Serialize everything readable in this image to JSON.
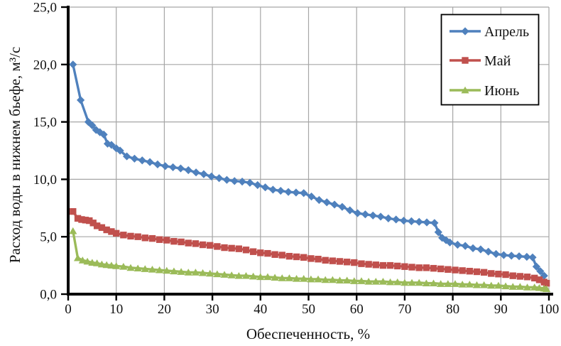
{
  "chart_data": {
    "type": "line",
    "title": "",
    "xlabel": "Обеспеченность, %",
    "ylabel": "Расход воды в нижнем бьефе, м³/с",
    "xlim": [
      0,
      100
    ],
    "ylim": [
      0,
      25
    ],
    "x_ticks": [
      0,
      10,
      20,
      30,
      40,
      50,
      60,
      70,
      80,
      90,
      100
    ],
    "x_tick_labels": [
      "0",
      "10",
      "20",
      "30",
      "40",
      "50",
      "60",
      "70",
      "80",
      "90",
      "100"
    ],
    "y_ticks": [
      0,
      5,
      10,
      15,
      20,
      25
    ],
    "y_tick_labels": [
      "0,0",
      "5,0",
      "10,0",
      "15,0",
      "20,0",
      "25,0"
    ],
    "grid": true,
    "grid_color": "#a6a6a6",
    "axis_color": "#000000",
    "legend_position": "top-right",
    "series": [
      {
        "id": "april",
        "name": "Апрель",
        "color": "#4F81BD",
        "marker": "diamond",
        "points": [
          [
            1,
            20.0
          ],
          [
            2.6,
            16.9
          ],
          [
            4.2,
            15.0
          ],
          [
            5,
            14.7
          ],
          [
            5.8,
            14.3
          ],
          [
            6.6,
            14.1
          ],
          [
            7.4,
            13.9
          ],
          [
            8.2,
            13.1
          ],
          [
            9,
            13.0
          ],
          [
            10,
            12.7
          ],
          [
            10.8,
            12.5
          ],
          [
            12.2,
            12.0
          ],
          [
            13.8,
            11.8
          ],
          [
            15.4,
            11.65
          ],
          [
            17,
            11.5
          ],
          [
            18.6,
            11.3
          ],
          [
            20.2,
            11.15
          ],
          [
            21.8,
            11.05
          ],
          [
            23.4,
            10.95
          ],
          [
            25,
            10.8
          ],
          [
            26.6,
            10.6
          ],
          [
            28.2,
            10.45
          ],
          [
            29.8,
            10.25
          ],
          [
            31.4,
            10.1
          ],
          [
            33,
            9.95
          ],
          [
            34.6,
            9.85
          ],
          [
            36.2,
            9.8
          ],
          [
            37.8,
            9.7
          ],
          [
            39.4,
            9.5
          ],
          [
            41,
            9.3
          ],
          [
            42.6,
            9.1
          ],
          [
            44.2,
            9.0
          ],
          [
            45.8,
            8.9
          ],
          [
            47.4,
            8.85
          ],
          [
            49,
            8.8
          ],
          [
            50.6,
            8.5
          ],
          [
            52.2,
            8.2
          ],
          [
            53.8,
            8.0
          ],
          [
            55.4,
            7.8
          ],
          [
            57,
            7.6
          ],
          [
            58.6,
            7.3
          ],
          [
            60.2,
            7.05
          ],
          [
            61.8,
            6.95
          ],
          [
            63.4,
            6.85
          ],
          [
            65,
            6.75
          ],
          [
            66.6,
            6.6
          ],
          [
            68.2,
            6.5
          ],
          [
            69.8,
            6.4
          ],
          [
            71.4,
            6.35
          ],
          [
            73,
            6.3
          ],
          [
            74.6,
            6.25
          ],
          [
            76.2,
            6.2
          ],
          [
            77,
            5.4
          ],
          [
            77.8,
            4.9
          ],
          [
            78.6,
            4.7
          ],
          [
            79.4,
            4.5
          ],
          [
            81,
            4.3
          ],
          [
            82.6,
            4.2
          ],
          [
            84.2,
            4.0
          ],
          [
            85.8,
            3.9
          ],
          [
            87.4,
            3.7
          ],
          [
            89,
            3.5
          ],
          [
            90.6,
            3.4
          ],
          [
            92.2,
            3.35
          ],
          [
            93.8,
            3.3
          ],
          [
            95.4,
            3.25
          ],
          [
            96.6,
            3.2
          ],
          [
            97.4,
            2.4
          ],
          [
            98.2,
            2.0
          ],
          [
            99,
            1.6
          ]
        ]
      },
      {
        "id": "may",
        "name": "Май",
        "color": "#C0504D",
        "marker": "square",
        "points": [
          [
            1,
            7.2
          ],
          [
            2,
            6.6
          ],
          [
            2.8,
            6.5
          ],
          [
            3.6,
            6.45
          ],
          [
            4.4,
            6.4
          ],
          [
            5.2,
            6.2
          ],
          [
            6,
            5.95
          ],
          [
            7,
            5.8
          ],
          [
            8,
            5.6
          ],
          [
            9,
            5.45
          ],
          [
            10,
            5.3
          ],
          [
            11.5,
            5.15
          ],
          [
            13,
            5.05
          ],
          [
            14.5,
            5.0
          ],
          [
            16,
            4.9
          ],
          [
            17.5,
            4.85
          ],
          [
            19,
            4.75
          ],
          [
            20.5,
            4.7
          ],
          [
            22,
            4.6
          ],
          [
            23.5,
            4.55
          ],
          [
            25,
            4.45
          ],
          [
            26.5,
            4.4
          ],
          [
            28,
            4.3
          ],
          [
            29.5,
            4.25
          ],
          [
            31,
            4.15
          ],
          [
            32.5,
            4.05
          ],
          [
            34,
            4.0
          ],
          [
            35.5,
            3.95
          ],
          [
            37,
            3.85
          ],
          [
            38.5,
            3.7
          ],
          [
            40,
            3.6
          ],
          [
            41.5,
            3.55
          ],
          [
            43,
            3.45
          ],
          [
            44.5,
            3.4
          ],
          [
            46,
            3.3
          ],
          [
            47.5,
            3.25
          ],
          [
            49,
            3.2
          ],
          [
            50.5,
            3.1
          ],
          [
            52,
            3.05
          ],
          [
            53.5,
            2.95
          ],
          [
            55,
            2.9
          ],
          [
            56.5,
            2.85
          ],
          [
            58,
            2.8
          ],
          [
            59.5,
            2.75
          ],
          [
            61,
            2.65
          ],
          [
            62.5,
            2.6
          ],
          [
            64,
            2.55
          ],
          [
            65.5,
            2.5
          ],
          [
            67,
            2.5
          ],
          [
            68.5,
            2.45
          ],
          [
            70,
            2.4
          ],
          [
            71.5,
            2.35
          ],
          [
            73,
            2.3
          ],
          [
            74.5,
            2.3
          ],
          [
            76,
            2.25
          ],
          [
            77.5,
            2.2
          ],
          [
            79,
            2.15
          ],
          [
            80.5,
            2.1
          ],
          [
            82,
            2.05
          ],
          [
            83.5,
            2.0
          ],
          [
            85,
            1.95
          ],
          [
            86.5,
            1.9
          ],
          [
            88,
            1.8
          ],
          [
            89.5,
            1.75
          ],
          [
            91,
            1.7
          ],
          [
            92.5,
            1.6
          ],
          [
            94,
            1.55
          ],
          [
            95.5,
            1.5
          ],
          [
            97,
            1.4
          ],
          [
            98,
            1.25
          ],
          [
            99,
            1.05
          ],
          [
            99.5,
            0.95
          ]
        ]
      },
      {
        "id": "june",
        "name": "Июнь",
        "color": "#9BBB59",
        "marker": "triangle",
        "points": [
          [
            1,
            5.5
          ],
          [
            2,
            3.15
          ],
          [
            3,
            2.95
          ],
          [
            4,
            2.85
          ],
          [
            5,
            2.75
          ],
          [
            6,
            2.7
          ],
          [
            7,
            2.6
          ],
          [
            8,
            2.55
          ],
          [
            9,
            2.5
          ],
          [
            10,
            2.45
          ],
          [
            11.5,
            2.4
          ],
          [
            13,
            2.3
          ],
          [
            14.5,
            2.25
          ],
          [
            16,
            2.2
          ],
          [
            17.5,
            2.15
          ],
          [
            19,
            2.1
          ],
          [
            20.5,
            2.05
          ],
          [
            22,
            2.0
          ],
          [
            23.5,
            1.95
          ],
          [
            25,
            1.9
          ],
          [
            26.5,
            1.9
          ],
          [
            28,
            1.85
          ],
          [
            29.5,
            1.8
          ],
          [
            31,
            1.75
          ],
          [
            32.5,
            1.7
          ],
          [
            34,
            1.65
          ],
          [
            35.5,
            1.6
          ],
          [
            37,
            1.6
          ],
          [
            38.5,
            1.55
          ],
          [
            40,
            1.5
          ],
          [
            41.5,
            1.5
          ],
          [
            43,
            1.45
          ],
          [
            44.5,
            1.4
          ],
          [
            46,
            1.4
          ],
          [
            47.5,
            1.35
          ],
          [
            49,
            1.35
          ],
          [
            50.5,
            1.3
          ],
          [
            52,
            1.3
          ],
          [
            53.5,
            1.25
          ],
          [
            55,
            1.25
          ],
          [
            56.5,
            1.2
          ],
          [
            58,
            1.2
          ],
          [
            59.5,
            1.15
          ],
          [
            61,
            1.15
          ],
          [
            62.5,
            1.1
          ],
          [
            64,
            1.1
          ],
          [
            65.5,
            1.1
          ],
          [
            67,
            1.05
          ],
          [
            68.5,
            1.05
          ],
          [
            70,
            1.0
          ],
          [
            71.5,
            1.0
          ],
          [
            73,
            1.0
          ],
          [
            74.5,
            0.95
          ],
          [
            76,
            0.95
          ],
          [
            77.5,
            0.9
          ],
          [
            79,
            0.9
          ],
          [
            80.5,
            0.9
          ],
          [
            82,
            0.85
          ],
          [
            83.5,
            0.85
          ],
          [
            85,
            0.8
          ],
          [
            86.5,
            0.8
          ],
          [
            88,
            0.75
          ],
          [
            89.5,
            0.75
          ],
          [
            91,
            0.7
          ],
          [
            92.5,
            0.65
          ],
          [
            94,
            0.65
          ],
          [
            95.5,
            0.6
          ],
          [
            97,
            0.6
          ],
          [
            98,
            0.55
          ],
          [
            99,
            0.5
          ],
          [
            99.5,
            0.45
          ]
        ]
      }
    ]
  }
}
